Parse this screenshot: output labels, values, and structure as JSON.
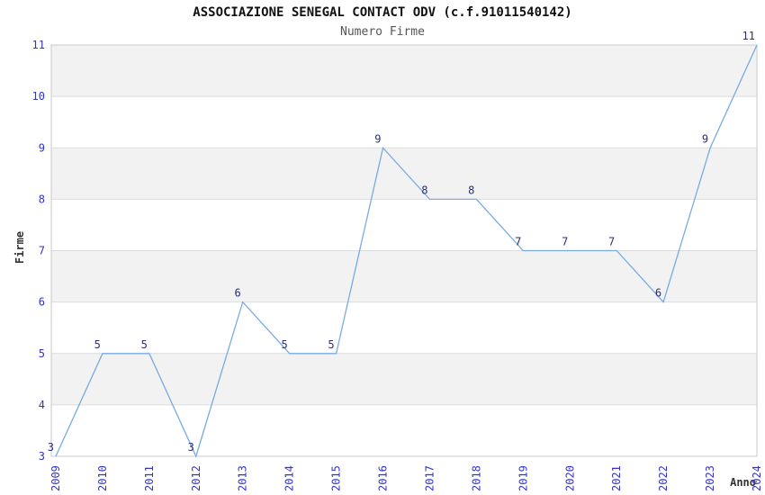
{
  "header": {
    "title": "ASSOCIAZIONE SENEGAL CONTACT ODV (c.f.91011540142)",
    "subtitle": "Numero Firme"
  },
  "chart_data": {
    "type": "line",
    "title": "ASSOCIAZIONE SENEGAL CONTACT ODV (c.f.91011540142)",
    "subtitle": "Numero Firme",
    "xlabel": "Anno",
    "ylabel": "Firme",
    "categories": [
      "2009",
      "2010",
      "2011",
      "2012",
      "2013",
      "2014",
      "2015",
      "2016",
      "2017",
      "2018",
      "2019",
      "2020",
      "2021",
      "2022",
      "2023",
      "2024"
    ],
    "values": [
      3,
      5,
      5,
      3,
      6,
      5,
      5,
      9,
      8,
      8,
      7,
      7,
      7,
      6,
      9,
      11
    ],
    "ylim": [
      3,
      11
    ],
    "ytick_step": 1,
    "yticks": [
      3,
      4,
      5,
      6,
      7,
      8,
      9,
      10,
      11
    ],
    "grid": "horizontal-bands",
    "legend": "none",
    "data_labels": true,
    "colors": {
      "line": "#76ACE2",
      "tick_label": "#3333CC",
      "data_label": "#2D2D7A",
      "band": "#F2F2F2",
      "gridline": "#DCDCDC",
      "border": "#C9C9C9",
      "title": "#111111",
      "subtitle": "#555555",
      "axis_title": "#333333"
    }
  }
}
